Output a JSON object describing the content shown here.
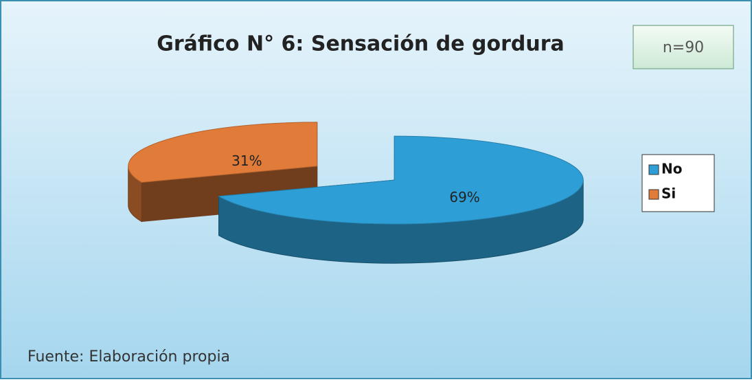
{
  "chart_data": {
    "type": "pie3d",
    "title": "Gráfico N° 6: Sensación de gordura",
    "annotation": "n=90",
    "source": "Fuente: Elaboración propia",
    "categories": [
      "No",
      "Si"
    ],
    "values": [
      69,
      31
    ],
    "value_labels": [
      "69%",
      "31%"
    ],
    "colors": [
      "#2e9fd6",
      "#e07b39"
    ],
    "legend": "right"
  }
}
